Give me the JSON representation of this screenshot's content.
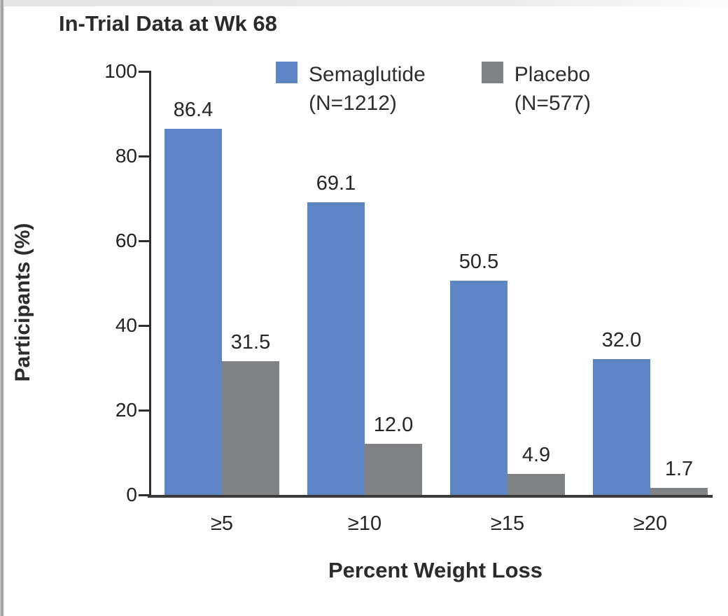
{
  "chart_data": {
    "type": "bar",
    "title": "In-Trial Data at Wk 68",
    "xlabel": "Percent Weight Loss",
    "ylabel": "Participants (%)",
    "categories": [
      "≥5",
      "≥10",
      "≥15",
      "≥20"
    ],
    "series": [
      {
        "name": "Semaglutide",
        "n_label": "(N=1212)",
        "color": "#5e86c4",
        "values": [
          86.4,
          69.1,
          50.5,
          32.0
        ]
      },
      {
        "name": "Placebo",
        "n_label": "(N=577)",
        "color": "#808285",
        "values": [
          31.5,
          12.0,
          4.9,
          1.7
        ]
      }
    ],
    "ylim": [
      0,
      100
    ],
    "yticks": [
      0,
      20,
      40,
      60,
      80,
      100
    ],
    "grid": false,
    "legend_position": "top",
    "value_labels_shown": true,
    "colors": {
      "axis": "#2e2e2e",
      "text": "#262626",
      "semaglutide": "#5e86c4",
      "placebo": "#808285"
    }
  }
}
